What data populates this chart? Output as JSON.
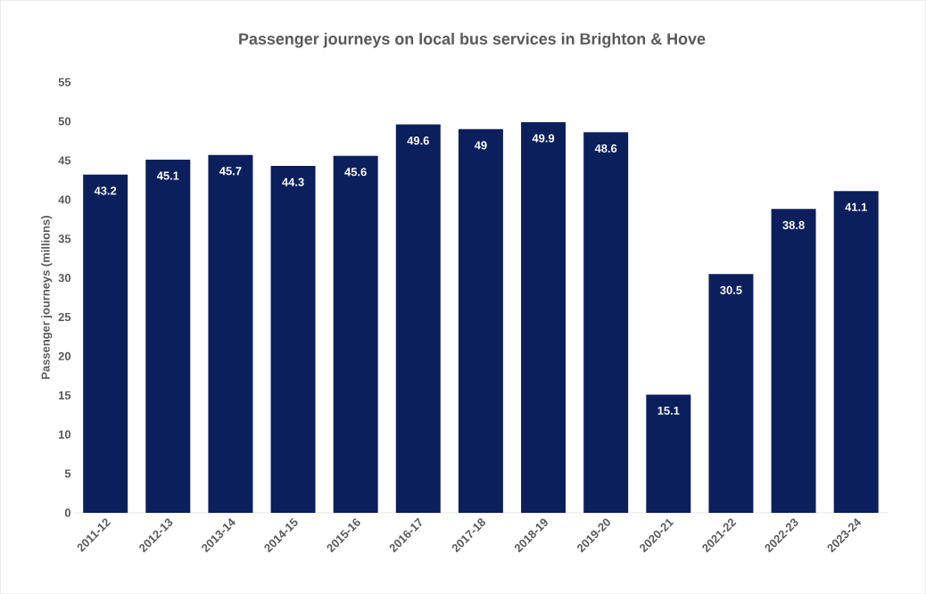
{
  "chart_data": {
    "type": "bar",
    "title": "Passenger journeys on local bus services in Brighton & Hove",
    "ylabel": "Passenger journeys (millions)",
    "categories": [
      "2011-12",
      "2012-13",
      "2013-14",
      "2014-15",
      "2015-16",
      "2016-17",
      "2017-18",
      "2018-19",
      "2019-20",
      "2020-21",
      "2021-22",
      "2022-23",
      "2023-24"
    ],
    "values": [
      43.2,
      45.1,
      45.7,
      44.3,
      45.6,
      49.6,
      49,
      49.9,
      48.6,
      15.1,
      30.5,
      38.8,
      41.1
    ],
    "color": "#0b1f5c",
    "ylim": [
      0,
      55
    ],
    "yticks": [
      0,
      5,
      10,
      15,
      20,
      25,
      30,
      35,
      40,
      45,
      50,
      55
    ],
    "data_labels": true
  }
}
